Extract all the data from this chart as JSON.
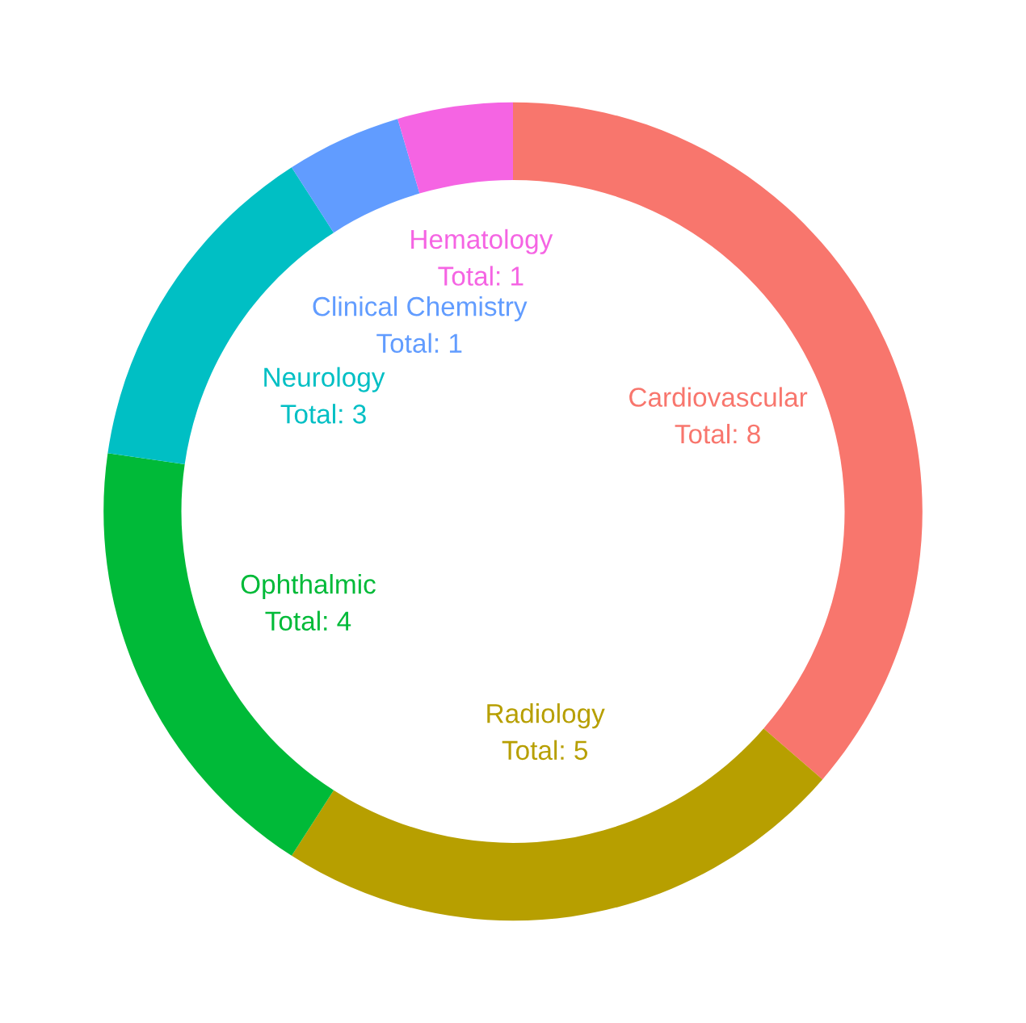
{
  "chart_data": {
    "type": "donut",
    "categories": [
      "Cardiovascular",
      "Radiology",
      "Ophthalmic",
      "Neurology",
      "Clinical Chemistry",
      "Hematology"
    ],
    "values": [
      8,
      5,
      4,
      3,
      1,
      1
    ],
    "value_labels": [
      "Total: 8",
      "Total: 5",
      "Total: 4",
      "Total: 3",
      "Total: 1",
      "Total: 1"
    ],
    "colors": [
      "#f8766d",
      "#b79f00",
      "#00ba38",
      "#00bfc4",
      "#619cff",
      "#f564e3"
    ],
    "legend": false
  }
}
